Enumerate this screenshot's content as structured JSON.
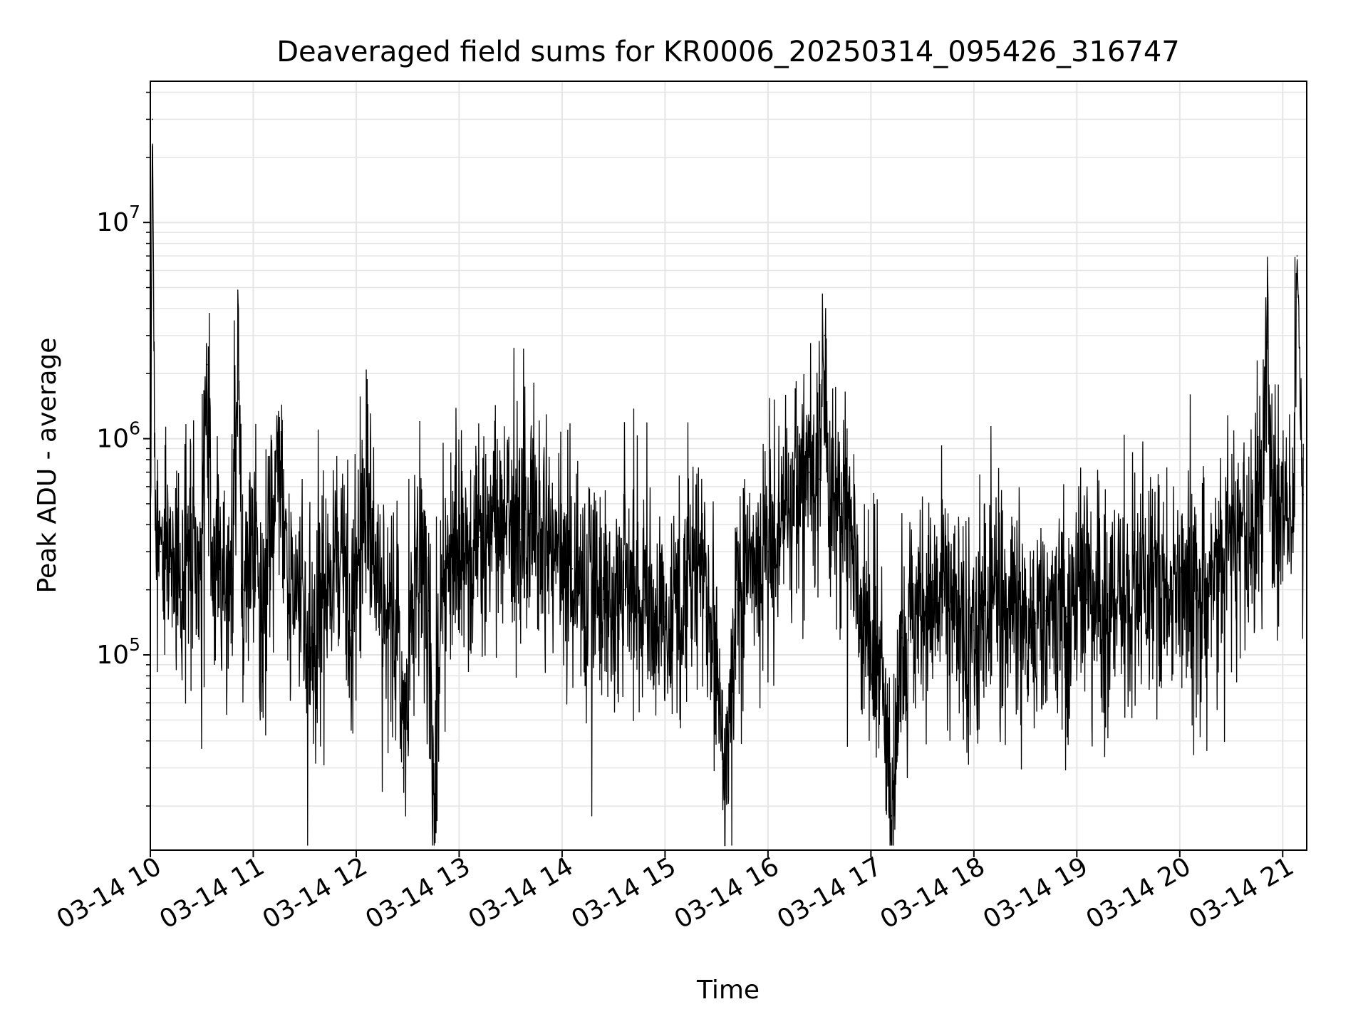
{
  "chart_data": {
    "type": "line",
    "title": "Deaveraged field sums for KR0006_20250314_095426_316747",
    "xlabel": "Time",
    "ylabel": "Peak ADU - average",
    "y_scale": "log",
    "ylim": [
      12500,
      45000000
    ],
    "xlim": [
      "03-14 10",
      "03-14 21:14"
    ],
    "x_ticks": [
      "03-14 10",
      "03-14 11",
      "03-14 12",
      "03-14 13",
      "03-14 14",
      "03-14 15",
      "03-14 16",
      "03-14 17",
      "03-14 18",
      "03-14 19",
      "03-14 20",
      "03-14 21"
    ],
    "y_ticks": [
      {
        "base": "10",
        "exp": "5",
        "value": 100000
      },
      {
        "base": "10",
        "exp": "6",
        "value": 1000000
      },
      {
        "base": "10",
        "exp": "7",
        "value": 10000000
      }
    ],
    "grid": true,
    "line_color": "#000000",
    "grid_color": "#e5e5e5",
    "series": [
      {
        "x_hours": [
          10.0,
          10.02,
          10.05,
          10.1,
          10.2,
          10.3,
          10.4,
          10.5,
          10.55,
          10.6,
          10.7,
          10.8,
          10.85,
          10.9,
          11.0,
          11.1,
          11.25,
          11.35,
          11.45,
          11.55,
          11.65,
          11.75,
          11.85,
          11.95,
          12.0,
          12.1,
          12.2,
          12.3,
          12.4,
          12.45,
          12.55,
          12.6,
          12.7,
          12.75,
          12.85,
          12.95,
          13.0,
          13.1,
          13.2,
          13.3,
          13.4,
          13.5,
          13.6,
          13.7,
          13.8,
          13.9,
          14.0,
          14.1,
          14.2,
          14.3,
          14.4,
          14.5,
          14.6,
          14.7,
          14.8,
          14.9,
          15.0,
          15.1,
          15.2,
          15.3,
          15.4,
          15.5,
          15.6,
          15.7,
          15.8,
          15.9,
          16.0,
          16.1,
          16.2,
          16.3,
          16.4,
          16.5,
          16.55,
          16.6,
          16.7,
          16.8,
          16.9,
          17.0,
          17.1,
          17.2,
          17.3,
          17.4,
          17.5,
          17.6,
          17.7,
          17.8,
          17.9,
          18.0,
          18.1,
          18.2,
          18.3,
          18.4,
          18.5,
          18.6,
          18.7,
          18.8,
          18.9,
          19.0,
          19.1,
          19.2,
          19.3,
          19.4,
          19.5,
          19.6,
          19.7,
          19.8,
          19.9,
          20.0,
          20.1,
          20.2,
          20.3,
          20.4,
          20.5,
          20.6,
          20.7,
          20.8,
          20.85,
          20.9,
          21.0,
          21.1,
          21.14,
          21.2
        ],
        "values": [
          350000,
          30000000,
          380000,
          300000,
          250000,
          200000,
          300000,
          250000,
          2200000,
          280000,
          220000,
          250000,
          2200000,
          200000,
          300000,
          150000,
          800000,
          250000,
          150000,
          100000,
          150000,
          220000,
          300000,
          130000,
          200000,
          600000,
          250000,
          150000,
          200000,
          30000,
          180000,
          250000,
          160000,
          25000,
          220000,
          300000,
          250000,
          280000,
          350000,
          400000,
          350000,
          400000,
          380000,
          450000,
          350000,
          300000,
          280000,
          250000,
          200000,
          220000,
          180000,
          160000,
          200000,
          250000,
          180000,
          160000,
          150000,
          180000,
          200000,
          250000,
          150000,
          120000,
          22000,
          200000,
          250000,
          220000,
          300000,
          350000,
          500000,
          600000,
          700000,
          650000,
          3000000,
          450000,
          500000,
          380000,
          150000,
          100000,
          100000,
          18000,
          120000,
          150000,
          140000,
          180000,
          200000,
          150000,
          140000,
          130000,
          160000,
          200000,
          150000,
          180000,
          150000,
          140000,
          160000,
          130000,
          150000,
          170000,
          180000,
          200000,
          160000,
          220000,
          200000,
          210000,
          250000,
          220000,
          200000,
          180000,
          220000,
          200000,
          240000,
          300000,
          350000,
          380000,
          400000,
          450000,
          2800000,
          480000,
          500000,
          450000,
          7000000,
          550000
        ]
      }
    ]
  }
}
